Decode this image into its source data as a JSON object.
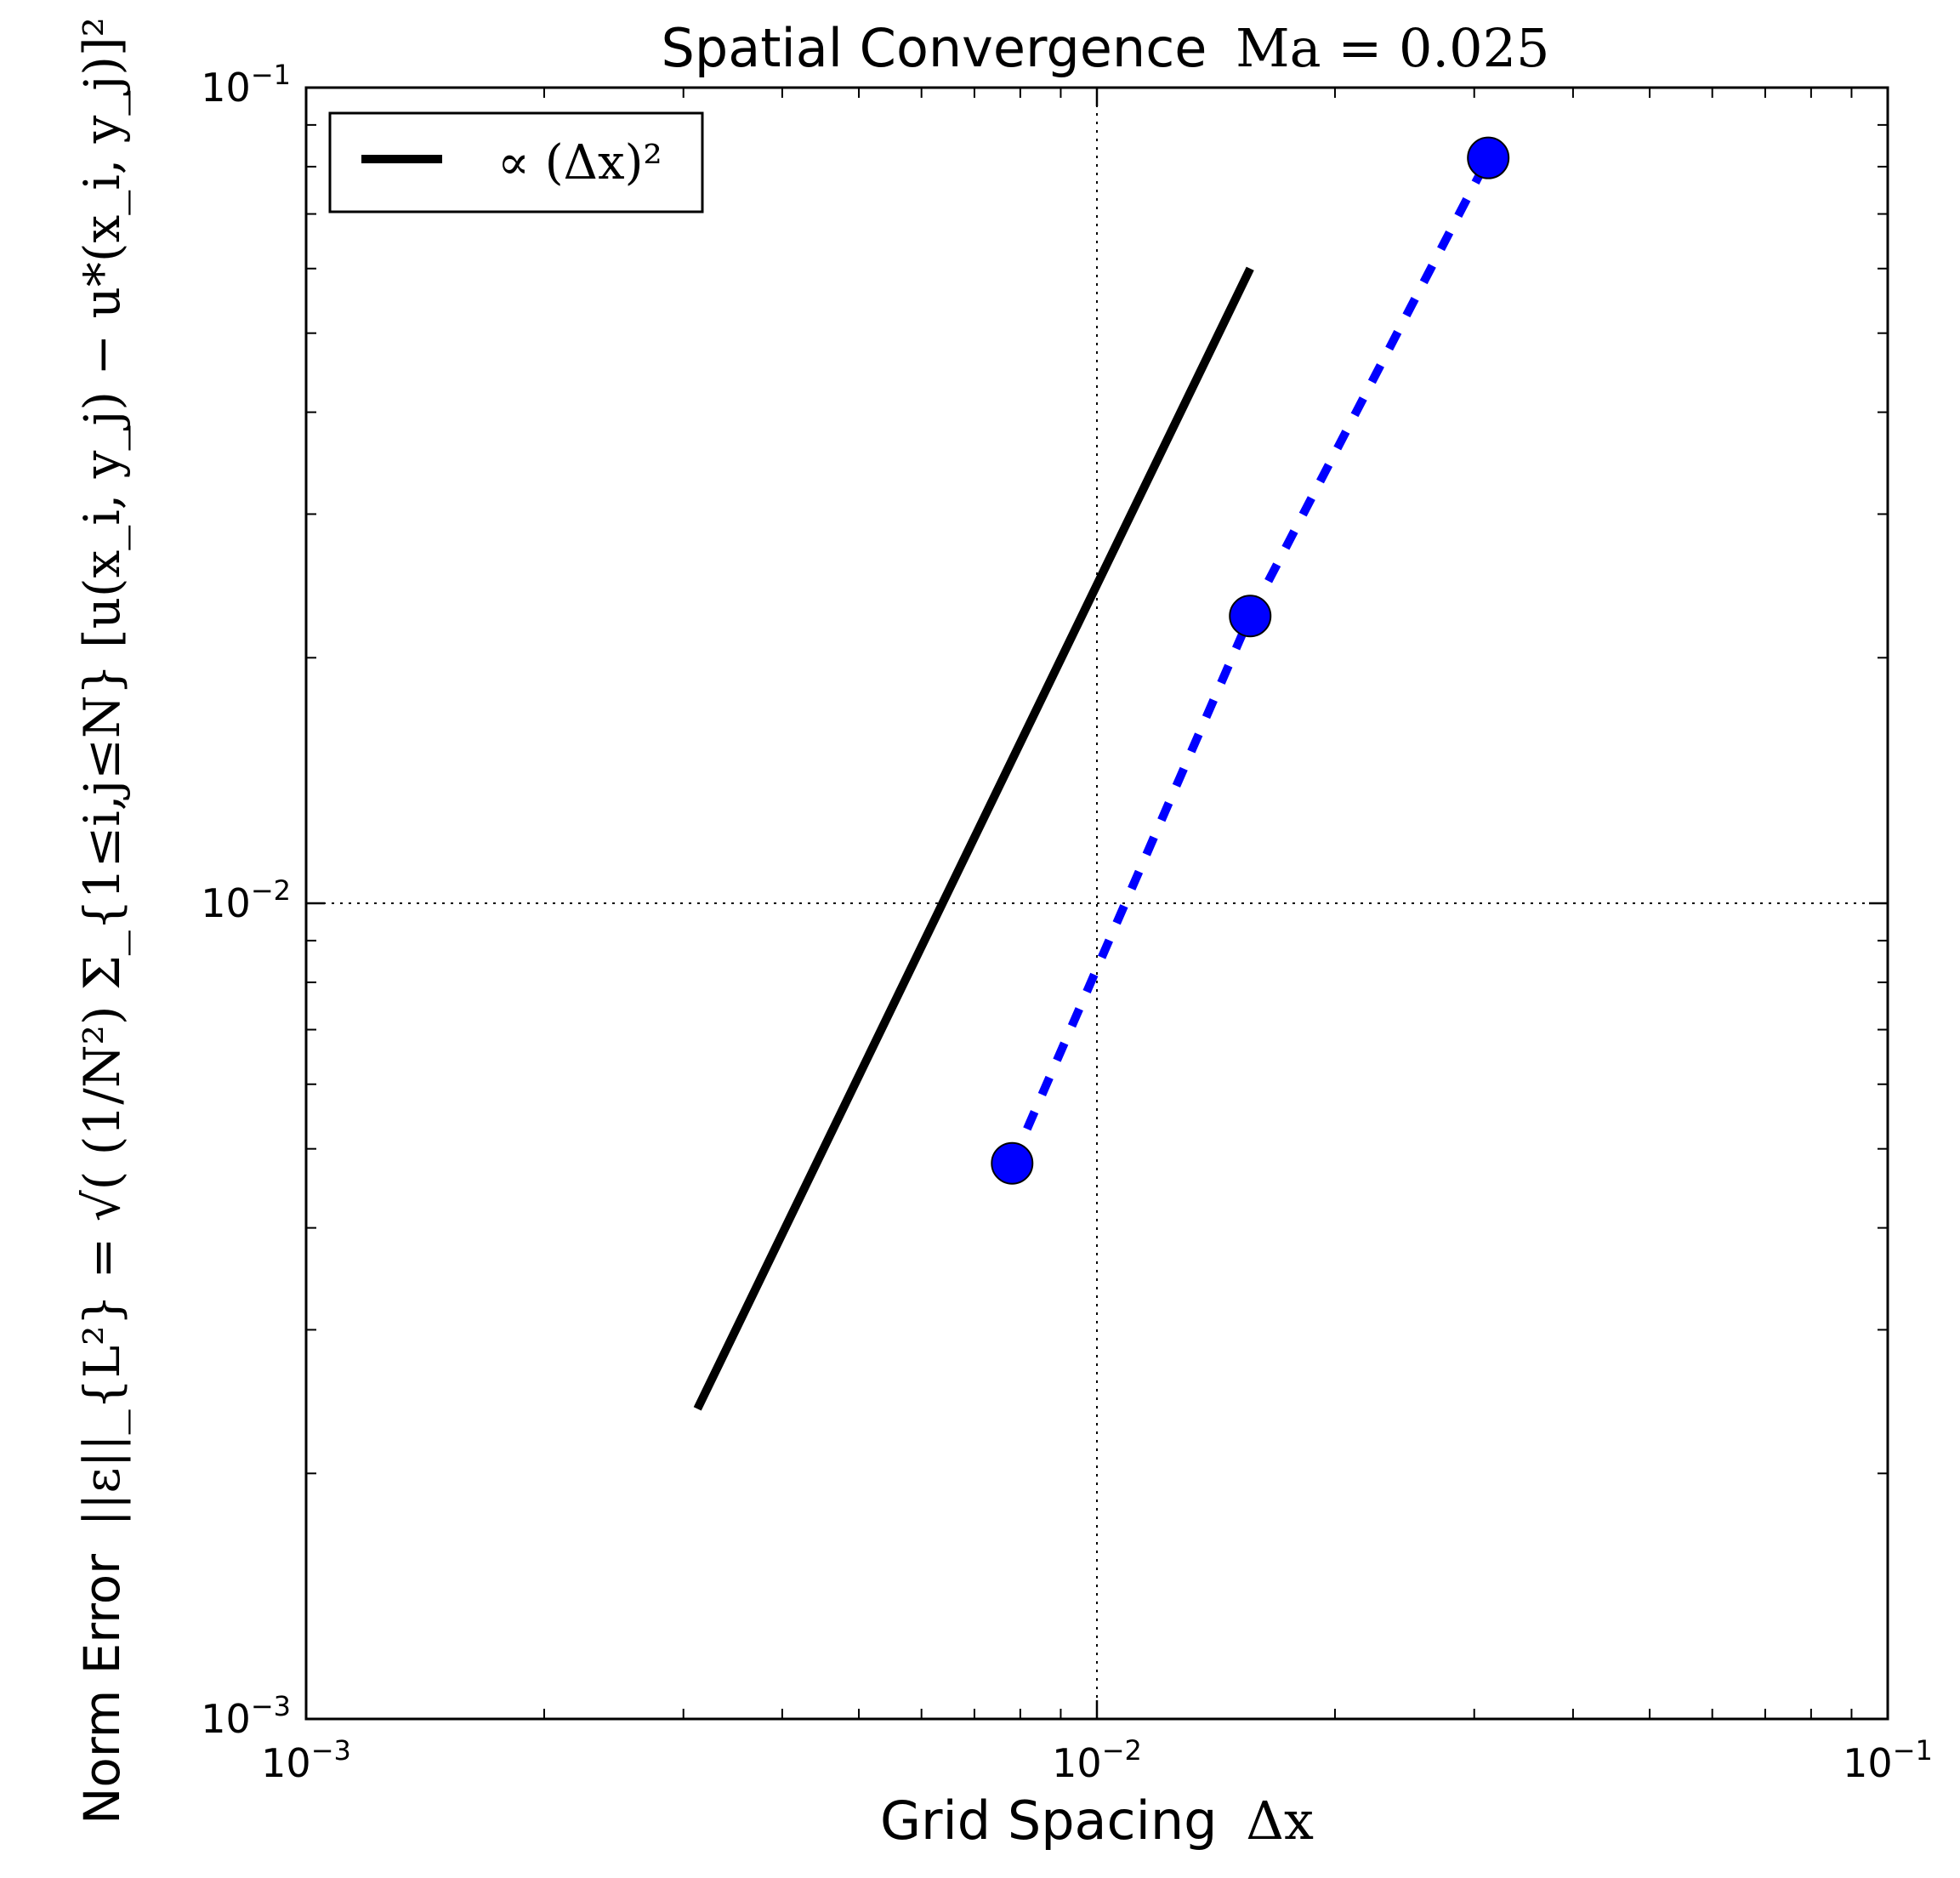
{
  "chart_data": {
    "type": "line",
    "title": "Spatial Convergence",
    "title_math": "Ma = 0.025",
    "xlabel": "Grid Spacing",
    "xlabel_math": "Δx",
    "ylabel": "Norm Error",
    "ylabel_math": "||ε||_{L²} = √( (1/N²) Σ_{1≤i,j≤N} [u(x_i, y_j) − u*(x_i, y_j)]² )",
    "xscale": "log",
    "yscale": "log",
    "xlim": [
      0.001,
      0.1
    ],
    "ylim": [
      0.001,
      0.1
    ],
    "xticks": [
      0.001,
      0.01,
      0.1
    ],
    "yticks": [
      0.001,
      0.01,
      0.1
    ],
    "xtick_labels": [
      {
        "base": "10",
        "exp": "−3"
      },
      {
        "base": "10",
        "exp": "−2"
      },
      {
        "base": "10",
        "exp": "−1"
      }
    ],
    "ytick_labels": [
      {
        "base": "10",
        "exp": "−3"
      },
      {
        "base": "10",
        "exp": "−2"
      },
      {
        "base": "10",
        "exp": "−1"
      }
    ],
    "grid": "major, dotted",
    "legend_position": "top-left",
    "series": [
      {
        "name": "∝ (Δx)²",
        "style": "solid",
        "color": "#000000",
        "x": [
          0.003125,
          0.015625
        ],
        "y": [
          0.0024,
          0.06
        ]
      },
      {
        "style": "dashed",
        "marker": "circle",
        "color": "#0000ff",
        "x": [
          0.0078125,
          0.015625,
          0.03125
        ],
        "y": [
          0.0048,
          0.0225,
          0.082
        ]
      }
    ]
  }
}
